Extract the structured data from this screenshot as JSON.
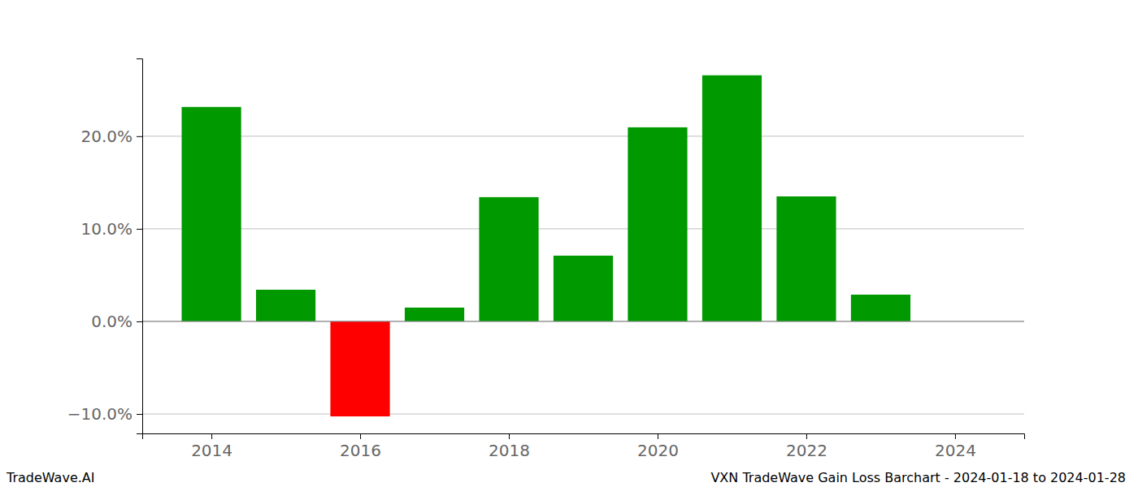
{
  "chart_data": {
    "type": "bar",
    "title": "VXN TradeWave Gain Loss Barchart - 2024-01-18 to 2024-01-28",
    "annotations": [
      "TradeWave.AI"
    ],
    "x": [
      2014,
      2015,
      2016,
      2017,
      2018,
      2019,
      2020,
      2021,
      2022,
      2023
    ],
    "values": [
      23.16,
      3.42,
      -10.26,
      1.49,
      13.42,
      7.1,
      20.96,
      26.58,
      13.5,
      2.89
    ],
    "colors": [
      "#009900",
      "#009900",
      "#ff0000",
      "#009900",
      "#009900",
      "#009900",
      "#009900",
      "#009900",
      "#009900",
      "#009900"
    ],
    "xlim": [
      2013.07,
      2024.93
    ],
    "xticks": [
      2014,
      2016,
      2018,
      2020,
      2022,
      2024
    ],
    "ylim": [
      -12.1,
      28.4
    ],
    "yticks": [
      {
        "value": -10,
        "label": "−10.0%"
      },
      {
        "value": 0,
        "label": "0.0%"
      },
      {
        "value": 10,
        "label": "10.0%"
      },
      {
        "value": 20,
        "label": "20.0%"
      }
    ],
    "grid": true
  }
}
